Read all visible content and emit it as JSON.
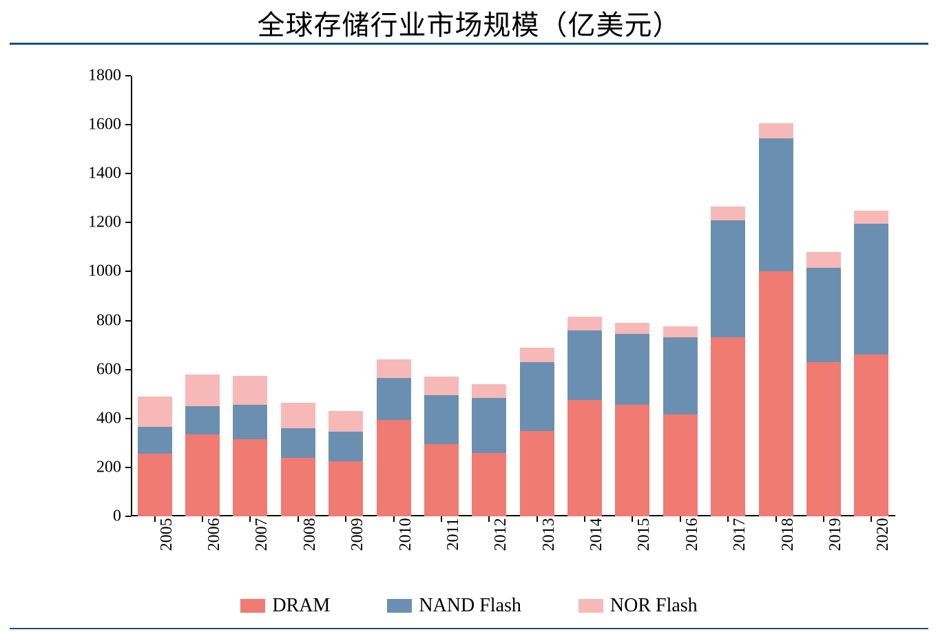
{
  "title": "全球存储行业市场规模（亿美元）",
  "chart": {
    "type": "stacked-bar",
    "background_color": "#ffffff",
    "title_fontsize": 40,
    "title_color": "#000000",
    "rule_color": "#1f4e79",
    "axis_color": "#000000",
    "tick_fontsize": 24,
    "legend_fontsize": 28,
    "ylim": [
      0,
      1800
    ],
    "ytick_step": 200,
    "yticks": [
      0,
      200,
      400,
      600,
      800,
      1000,
      1200,
      1400,
      1600,
      1800
    ],
    "categories": [
      "2005",
      "2006",
      "2007",
      "2008",
      "2009",
      "2010",
      "2011",
      "2012",
      "2013",
      "2014",
      "2015",
      "2016",
      "2017",
      "2018",
      "2019",
      "2020"
    ],
    "series": [
      {
        "name": "DRAM",
        "color": "#ef7b72"
      },
      {
        "name": "NAND Flash",
        "color": "#6b8fb0"
      },
      {
        "name": "NOR Flash",
        "color": "#f6b9b7"
      }
    ],
    "values": {
      "DRAM": [
        255,
        335,
        315,
        240,
        225,
        395,
        295,
        260,
        350,
        475,
        455,
        415,
        730,
        1000,
        630,
        660
      ],
      "NAND Flash": [
        110,
        115,
        140,
        120,
        120,
        170,
        200,
        225,
        280,
        285,
        290,
        315,
        480,
        545,
        385,
        535
      ],
      "NOR Flash": [
        125,
        130,
        120,
        105,
        85,
        75,
        75,
        55,
        60,
        55,
        45,
        45,
        55,
        60,
        65,
        55
      ]
    },
    "bar_width_ratio": 0.72,
    "x_label_rotation_deg": -90
  },
  "legend_labels": {
    "dram": "DRAM",
    "nand": "NAND Flash",
    "nor": "NOR Flash"
  }
}
